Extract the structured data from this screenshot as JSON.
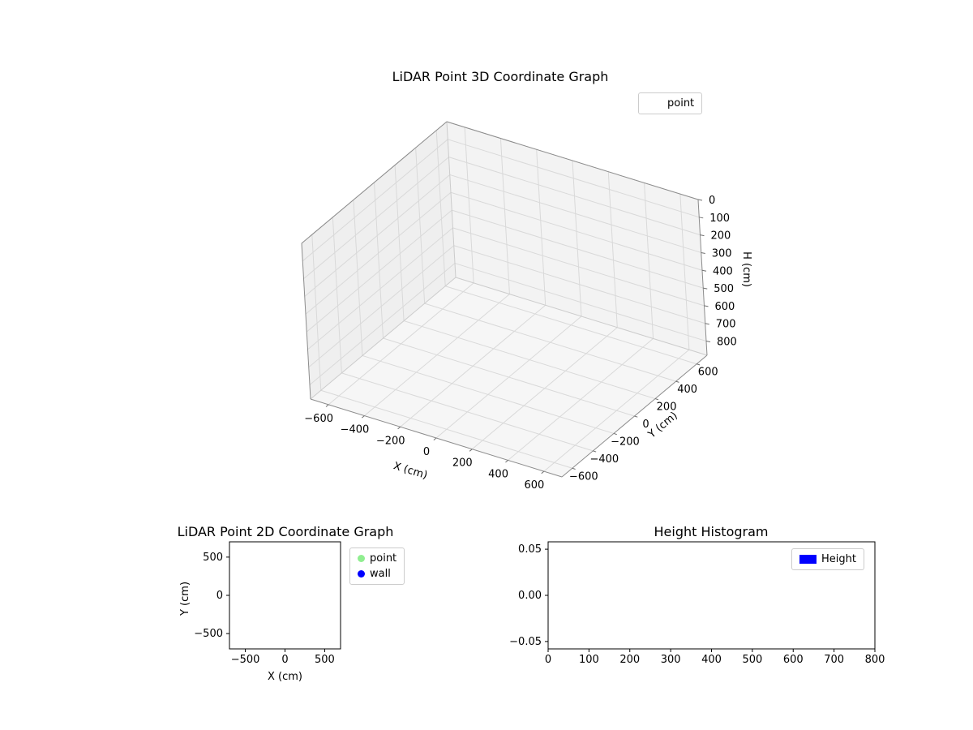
{
  "figure": {
    "background": "#ffffff"
  },
  "chart_data": [
    {
      "id": "lidar-3d",
      "type": "scatter3d",
      "title": "LiDAR Point 3D Coordinate Graph",
      "xlabel": "X (cm)",
      "ylabel": "Y (cm)",
      "zlabel": "H (cm)",
      "xlim": [
        -700,
        700
      ],
      "ylim": [
        -700,
        700
      ],
      "zlim": [
        0,
        880
      ],
      "z_axis_inverted": true,
      "grid": true,
      "x_ticks": {
        "values": [
          -600,
          -400,
          -200,
          0,
          200,
          400,
          600
        ],
        "labels": [
          "−600",
          "−400",
          "−200",
          "0",
          "200",
          "400",
          "600"
        ]
      },
      "y_ticks": {
        "values": [
          -600,
          -400,
          -200,
          0,
          200,
          400,
          600
        ],
        "labels": [
          "−600",
          "−400",
          "−200",
          "0",
          "200",
          "400",
          "600"
        ]
      },
      "z_ticks": {
        "values": [
          0,
          100,
          200,
          300,
          400,
          500,
          600,
          700,
          800
        ],
        "labels": [
          "0",
          "100",
          "200",
          "300",
          "400",
          "500",
          "600",
          "700",
          "800"
        ]
      },
      "legend": {
        "position": "upper right",
        "entries": [
          {
            "label": "point",
            "marker": "none"
          }
        ]
      },
      "series": [
        {
          "name": "point",
          "points": []
        }
      ]
    },
    {
      "id": "lidar-2d",
      "type": "scatter",
      "title": "LiDAR Point 2D Coordinate Graph",
      "xlabel": "X (cm)",
      "ylabel": "Y (cm)",
      "xlim": [
        -700,
        700
      ],
      "ylim": [
        -700,
        700
      ],
      "grid": false,
      "x_ticks": {
        "values": [
          -500,
          0,
          500
        ],
        "labels": [
          "−500",
          "0",
          "500"
        ]
      },
      "y_ticks": {
        "values": [
          500,
          0,
          -500
        ],
        "labels": [
          "500",
          "0",
          "−500"
        ]
      },
      "legend": {
        "position": "upper right outside",
        "entries": [
          {
            "label": "point",
            "marker": "circle",
            "color": "#90ee90"
          },
          {
            "label": "wall",
            "marker": "circle",
            "color": "#0000ff"
          }
        ]
      },
      "series": [
        {
          "name": "point",
          "color": "#90ee90",
          "points": []
        },
        {
          "name": "wall",
          "color": "#0000ff",
          "points": []
        }
      ]
    },
    {
      "id": "height-histogram",
      "type": "bar",
      "title": "Height Histogram",
      "xlabel": "",
      "xlim": [
        0,
        800
      ],
      "ylim": [
        -0.058,
        0.058
      ],
      "grid": false,
      "x_ticks": {
        "values": [
          0,
          100,
          200,
          300,
          400,
          500,
          600,
          700,
          800
        ],
        "labels": [
          "0",
          "100",
          "200",
          "300",
          "400",
          "500",
          "600",
          "700",
          "800"
        ]
      },
      "y_ticks": {
        "values": [
          0.05,
          0.0,
          -0.05
        ],
        "labels": [
          "0.05",
          "0.00",
          "−0.05"
        ]
      },
      "legend": {
        "position": "upper right",
        "entries": [
          {
            "label": "Height",
            "marker": "rect",
            "color": "#0000ff"
          }
        ]
      },
      "series": [
        {
          "name": "Height",
          "color": "#0000ff",
          "values": []
        }
      ]
    }
  ]
}
